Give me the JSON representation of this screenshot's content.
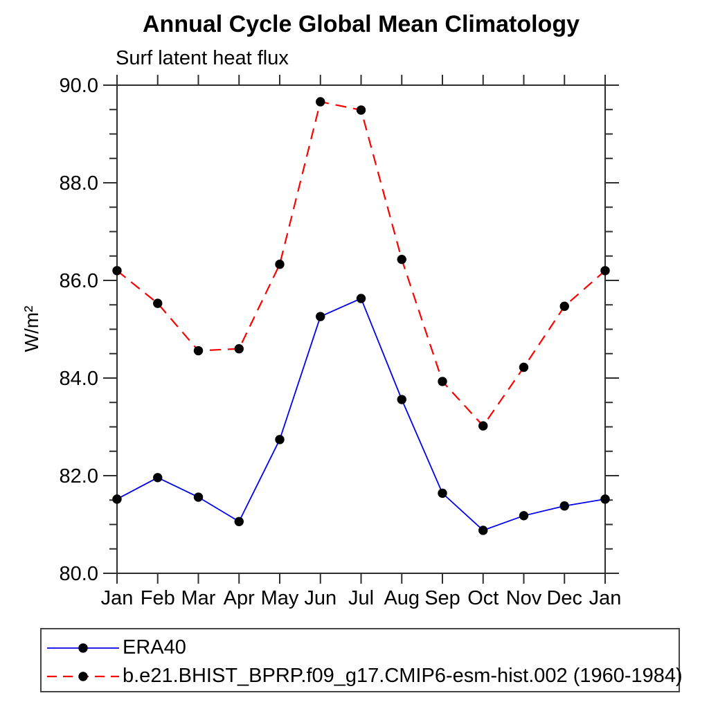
{
  "header": {
    "title": "Annual Cycle Global Mean Climatology",
    "subtitle": "Surf latent heat flux"
  },
  "chart_data": {
    "type": "line",
    "title": "Annual Cycle Global Mean Climatology",
    "subtitle": "Surf latent heat flux",
    "ylabel": "W/m²",
    "xlabel": "",
    "categories": [
      "Jan",
      "Feb",
      "Mar",
      "Apr",
      "May",
      "Jun",
      "Jul",
      "Aug",
      "Sep",
      "Oct",
      "Nov",
      "Dec",
      "Jan"
    ],
    "ylim": [
      80.0,
      90.0
    ],
    "y_major_step": 2.0,
    "y_minor_step": 0.5,
    "y_major_labels": [
      "80.0",
      "82.0",
      "84.0",
      "86.0",
      "88.0",
      "90.0"
    ],
    "grid": false,
    "legend_position": "bottom-left-box",
    "axis_color": "#2e2e2e",
    "marker_color": "#000000",
    "series": [
      {
        "name": "ERA40",
        "color": "#0000ee",
        "line_style": "solid",
        "marker": "filled-circle",
        "values": [
          81.52,
          81.96,
          81.56,
          81.06,
          82.74,
          85.26,
          85.63,
          83.56,
          81.64,
          80.88,
          81.18,
          81.38,
          81.52
        ]
      },
      {
        "name": "b.e21.BHIST_BPRP.f09_g17.CMIP6-esm-hist.002 (1960-1984)",
        "color": "#ff0000",
        "line_style": "dashed",
        "marker": "filled-circle",
        "values": [
          86.2,
          85.53,
          84.56,
          84.6,
          86.33,
          89.66,
          89.49,
          86.43,
          83.93,
          83.02,
          84.22,
          85.47,
          86.2
        ]
      }
    ]
  }
}
